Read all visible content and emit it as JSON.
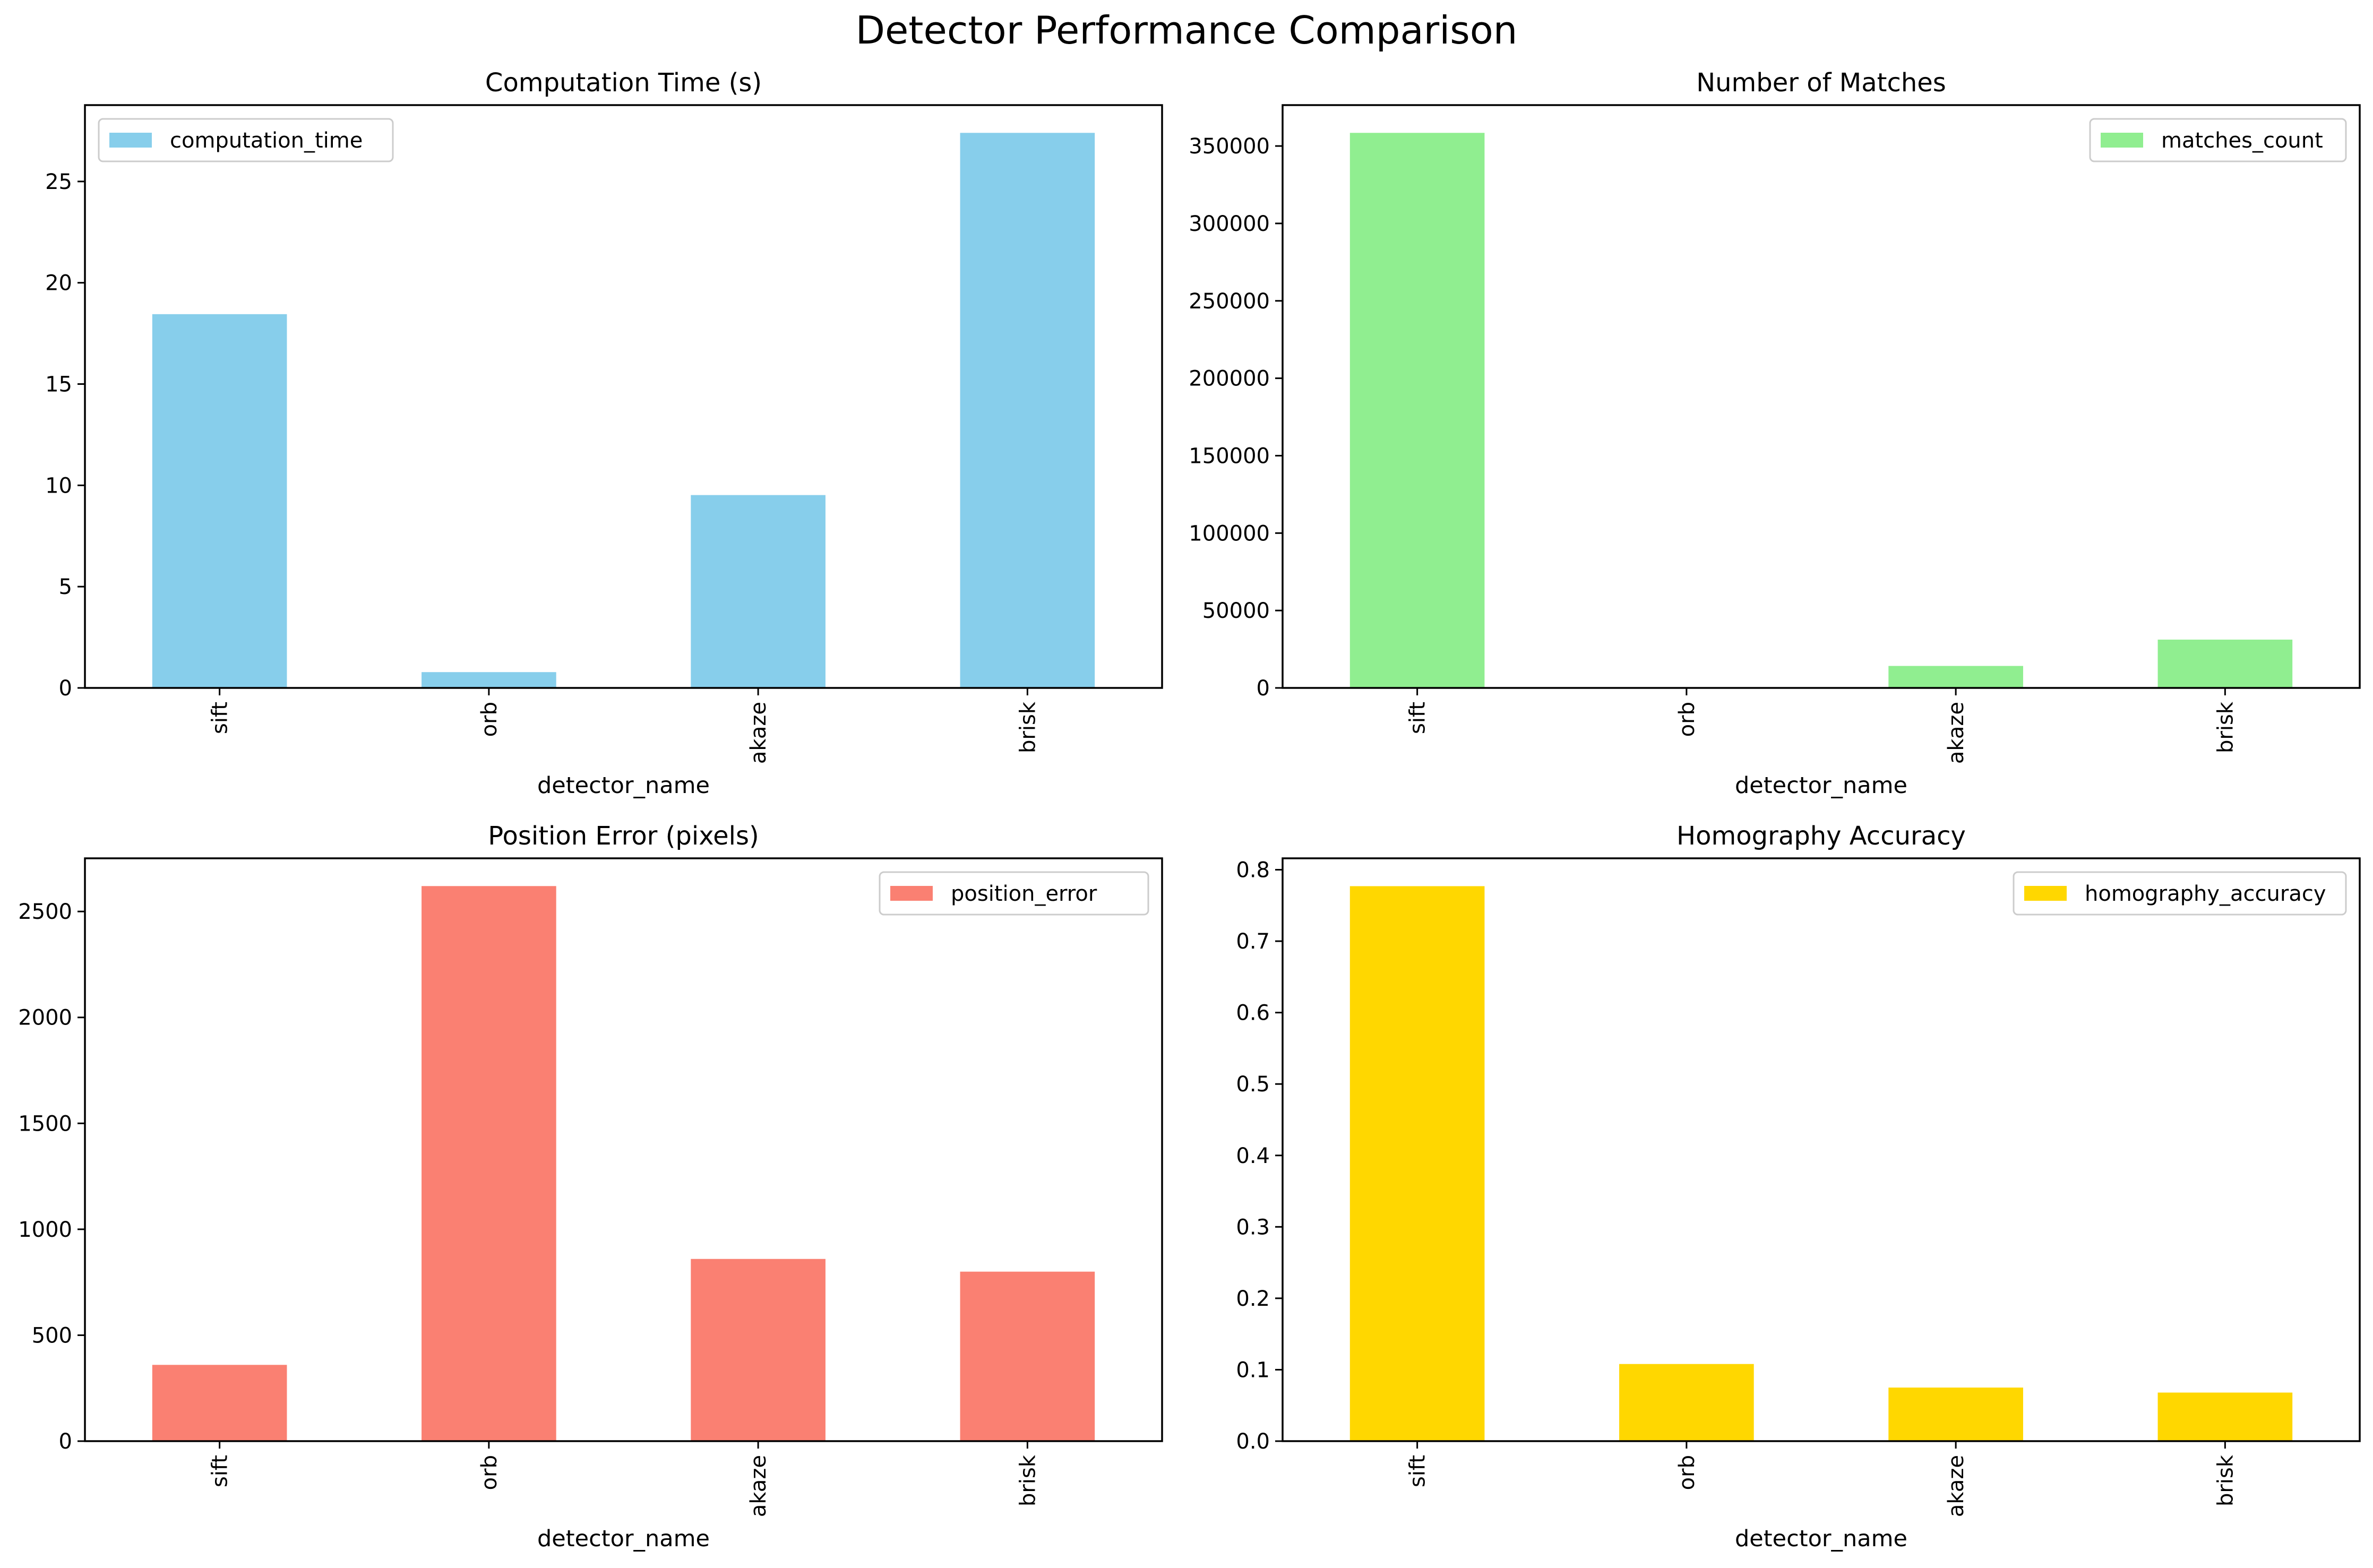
{
  "figure": {
    "title": "Detector Performance Comparison"
  },
  "chart_data": [
    {
      "type": "bar",
      "title": "Computation Time (s)",
      "xlabel": "detector_name",
      "ylabel": "",
      "categories": [
        "sift",
        "orb",
        "akaze",
        "brisk"
      ],
      "series": [
        {
          "name": "computation_time",
          "values": [
            18.45,
            0.78,
            9.52,
            27.4
          ],
          "color": "#87CEEB"
        }
      ],
      "ylim": [
        0,
        28.77
      ],
      "yticks": [
        0,
        5,
        10,
        15,
        20,
        25
      ],
      "ytick_labels": [
        "0",
        "5",
        "10",
        "15",
        "20",
        "25"
      ],
      "legend": "upper left",
      "grid": false
    },
    {
      "type": "bar",
      "title": "Number of Matches",
      "xlabel": "detector_name",
      "ylabel": "",
      "categories": [
        "sift",
        "orb",
        "akaze",
        "brisk"
      ],
      "series": [
        {
          "name": "matches_count",
          "values": [
            358500,
            0,
            14200,
            31200
          ],
          "color": "#90EE90"
        }
      ],
      "ylim": [
        0,
        376425
      ],
      "yticks": [
        0,
        50000,
        100000,
        150000,
        200000,
        250000,
        300000,
        350000
      ],
      "ytick_labels": [
        "0",
        "50000",
        "100000",
        "150000",
        "200000",
        "250000",
        "300000",
        "350000"
      ],
      "legend": "upper right",
      "grid": false
    },
    {
      "type": "bar",
      "title": "Position Error (pixels)",
      "xlabel": "detector_name",
      "ylabel": "",
      "categories": [
        "sift",
        "orb",
        "akaze",
        "brisk"
      ],
      "series": [
        {
          "name": "position_error",
          "values": [
            360,
            2620,
            860,
            800
          ],
          "color": "#FA8072"
        }
      ],
      "ylim": [
        0,
        2751
      ],
      "yticks": [
        0,
        500,
        1000,
        1500,
        2000,
        2500
      ],
      "ytick_labels": [
        "0",
        "500",
        "1000",
        "1500",
        "2000",
        "2500"
      ],
      "legend": "upper right",
      "grid": false
    },
    {
      "type": "bar",
      "title": "Homography Accuracy",
      "xlabel": "detector_name",
      "ylabel": "",
      "categories": [
        "sift",
        "orb",
        "akaze",
        "brisk"
      ],
      "series": [
        {
          "name": "homography_accuracy",
          "values": [
            0.777,
            0.108,
            0.075,
            0.068
          ],
          "color": "#FFD700"
        }
      ],
      "ylim": [
        0,
        0.816
      ],
      "yticks": [
        0,
        0.1,
        0.2,
        0.3,
        0.4,
        0.5,
        0.6,
        0.7,
        0.8
      ],
      "ytick_labels": [
        "0.0",
        "0.1",
        "0.2",
        "0.3",
        "0.4",
        "0.5",
        "0.6",
        "0.7",
        "0.8"
      ],
      "legend": "upper right",
      "grid": false
    }
  ]
}
